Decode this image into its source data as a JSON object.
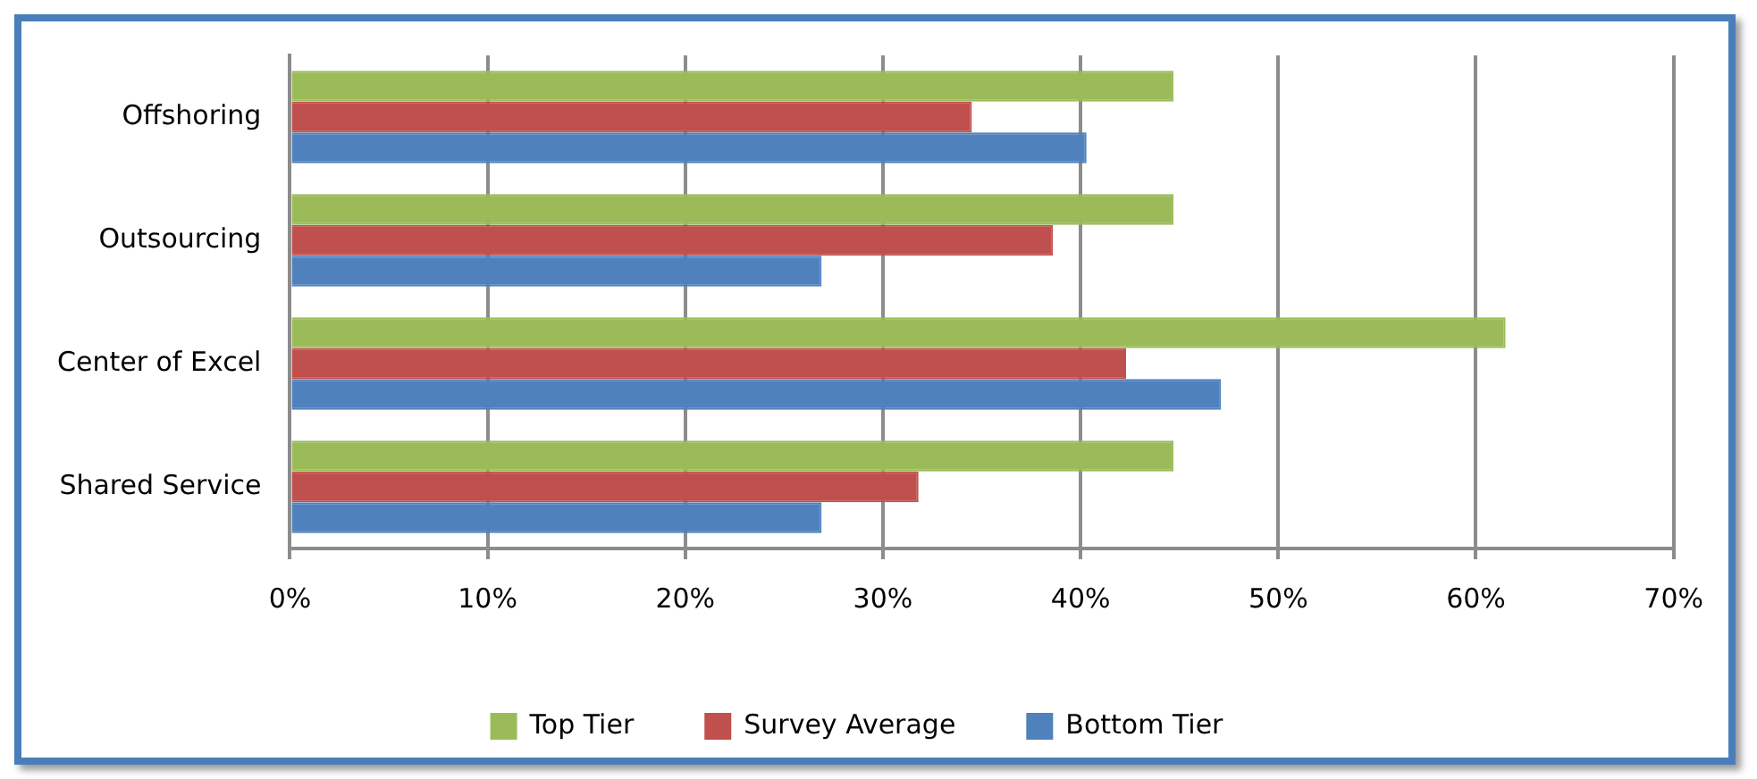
{
  "chart_data": {
    "type": "bar",
    "orientation": "horizontal",
    "categories": [
      "Offshoring",
      "Outsourcing",
      "Center of Excel",
      "Shared Service"
    ],
    "series": [
      {
        "name": "Top Tier",
        "color": "#9bbb59",
        "values": [
          44.7,
          44.7,
          61.5,
          44.7
        ]
      },
      {
        "name": "Survey Average",
        "color": "#c0504d",
        "values": [
          34.5,
          38.6,
          42.3,
          31.8
        ]
      },
      {
        "name": "Bottom Tier",
        "color": "#4f81bd",
        "values": [
          40.3,
          26.9,
          47.1,
          26.9
        ]
      }
    ],
    "xlim": [
      0,
      70
    ],
    "xticks": [
      {
        "value": 0,
        "label": "0%"
      },
      {
        "value": 10,
        "label": "10%"
      },
      {
        "value": 20,
        "label": "20%"
      },
      {
        "value": 30,
        "label": "30%"
      },
      {
        "value": 40,
        "label": "40%"
      },
      {
        "value": 50,
        "label": "50%"
      },
      {
        "value": 60,
        "label": "60%"
      },
      {
        "value": 70,
        "label": "70%"
      }
    ],
    "grid": "x",
    "legend": "bottom"
  }
}
